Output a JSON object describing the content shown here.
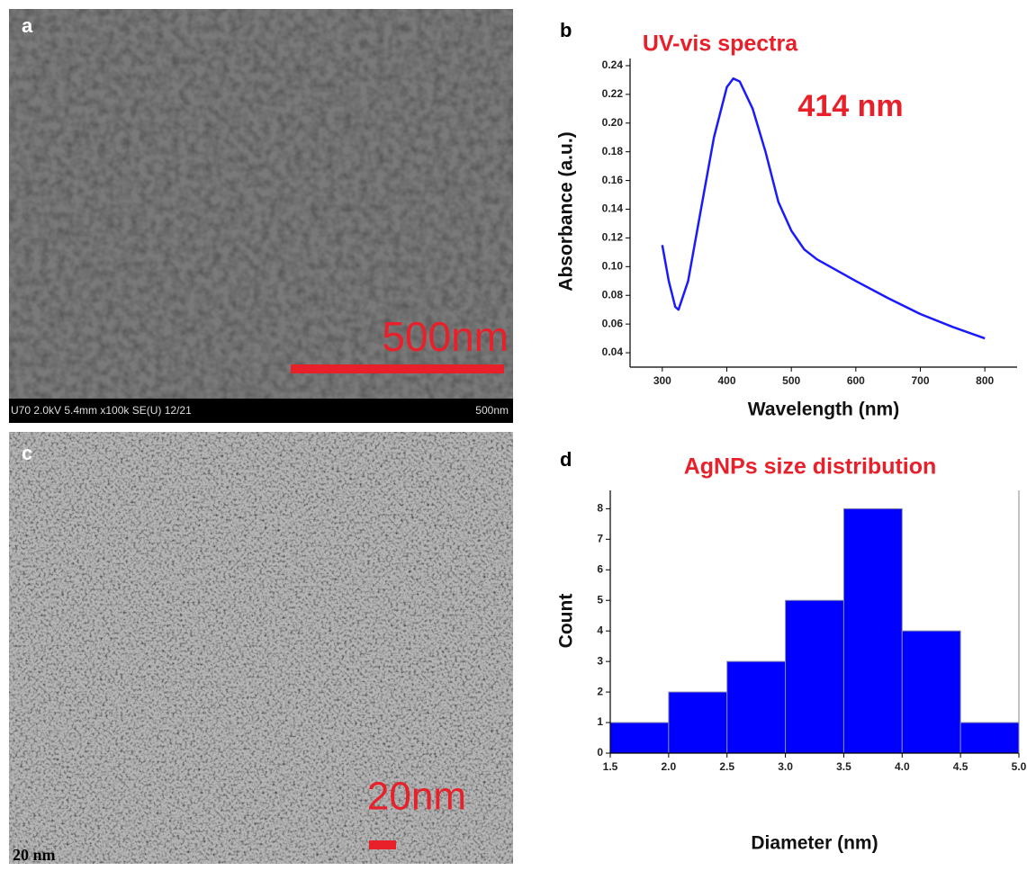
{
  "panels": [
    {
      "label": "a",
      "scale_bar": "500nm",
      "info_bar": "U70 2.0kV 5.4mm x100k SE(U) 12/21",
      "info_scale": "500nm"
    },
    {
      "label": "c",
      "scale_bar": "20nm",
      "corner": "20 nm"
    }
  ],
  "chart_data": [
    {
      "type": "line",
      "panel": "b",
      "title": "UV-vis spectra",
      "annotation": "414 nm",
      "x_label": "Wavelength (nm)",
      "y_label": "Absorbance (a.u.)",
      "color": "#1a1aff",
      "x": [
        300,
        310,
        320,
        325,
        340,
        360,
        380,
        400,
        410,
        420,
        440,
        460,
        480,
        500,
        520,
        540,
        600,
        650,
        700,
        750,
        800
      ],
      "values": [
        0.115,
        0.09,
        0.072,
        0.07,
        0.09,
        0.14,
        0.19,
        0.225,
        0.231,
        0.229,
        0.21,
        0.18,
        0.145,
        0.125,
        0.112,
        0.105,
        0.09,
        0.078,
        0.067,
        0.058,
        0.05
      ],
      "xlim": [
        250,
        850
      ],
      "ylim": [
        0.03,
        0.245
      ],
      "xticks": [
        300,
        400,
        500,
        600,
        700,
        800
      ],
      "yticks": [
        0.04,
        0.06,
        0.08,
        {
          "value": 0.1,
          "label": "0.10"
        },
        0.12,
        0.14,
        0.16,
        0.18,
        {
          "value": 0.2,
          "label": "0.20"
        },
        0.22,
        0.24
      ]
    },
    {
      "type": "histogram",
      "panel": "d",
      "title": "AgNPs size distribution",
      "x_label": "Diameter (nm)",
      "y_label": "Count",
      "color": "#0000ff",
      "bins": [
        1.5,
        2.0,
        2.5,
        3.0,
        3.5,
        4.0,
        4.5,
        5.0
      ],
      "values": [
        1,
        2,
        3,
        5,
        8,
        4,
        1
      ],
      "xlim": [
        1.5,
        5.0
      ],
      "ylim": [
        0,
        8.6
      ],
      "xticks": [
        1.5,
        {
          "value": 2,
          "label": "2.0"
        },
        2.5,
        {
          "value": 3,
          "label": "3.0"
        },
        3.5,
        {
          "value": 4,
          "label": "4.0"
        },
        4.5,
        {
          "value": 5,
          "label": "5.0"
        }
      ],
      "yticks": [
        0,
        1,
        2,
        3,
        4,
        5,
        6,
        7,
        8
      ]
    }
  ]
}
